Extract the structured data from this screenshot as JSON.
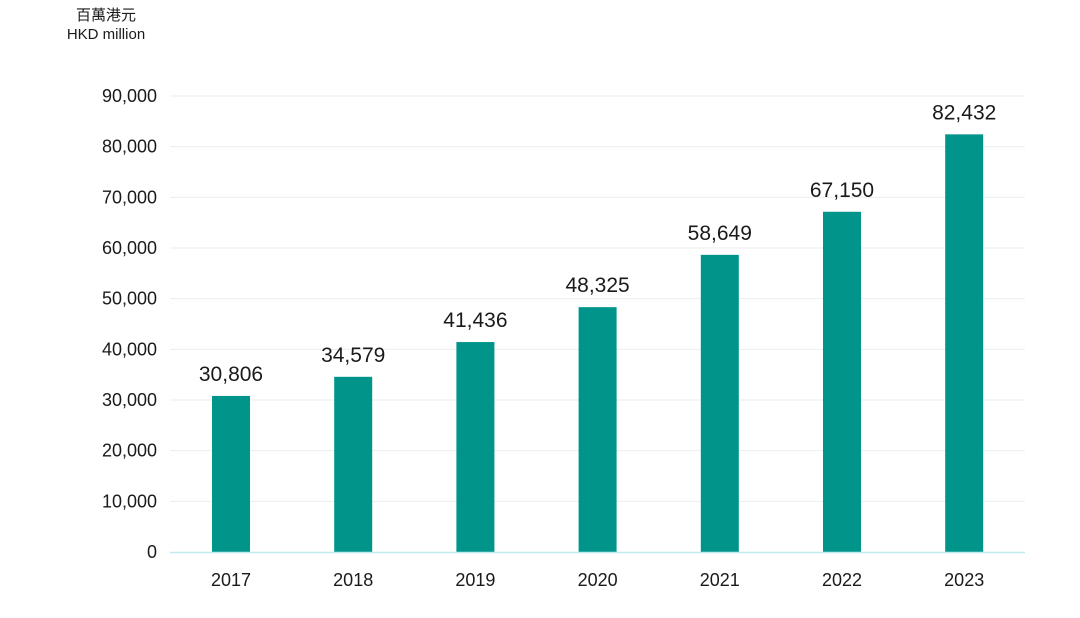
{
  "chart_data": {
    "type": "bar",
    "unit_label_zh": "百萬港元",
    "unit_label_en": "HKD million",
    "categories": [
      "2017",
      "2018",
      "2019",
      "2020",
      "2021",
      "2022",
      "2023"
    ],
    "values": [
      30806,
      34579,
      41436,
      48325,
      58649,
      67150,
      82432
    ],
    "value_labels": [
      "30,806",
      "34,579",
      "41,436",
      "48,325",
      "58,649",
      "67,150",
      "82,432"
    ],
    "yticks": [
      "0",
      "10,000",
      "20,000",
      "30,000",
      "40,000",
      "50,000",
      "60,000",
      "70,000",
      "80,000",
      "90,000"
    ],
    "ylim": [
      0,
      90000
    ],
    "grid": true,
    "colors": {
      "bar": "#00948a",
      "grid": "#e9eeee",
      "axis": "#bfe9ec"
    }
  }
}
